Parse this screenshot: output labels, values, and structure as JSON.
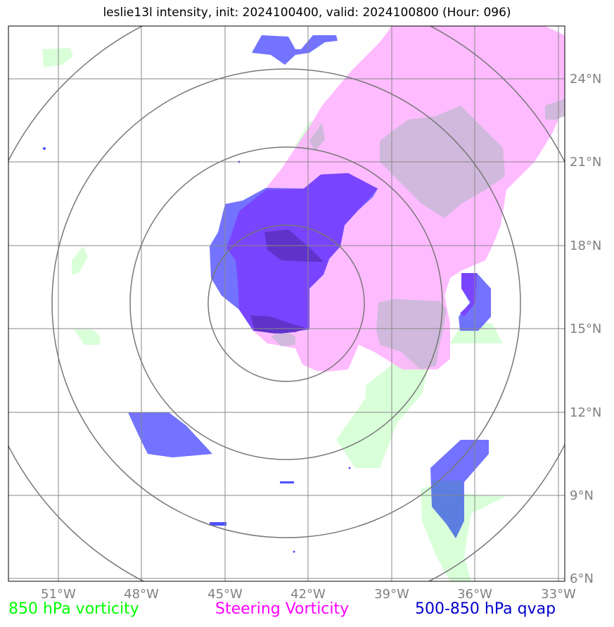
{
  "title": "leslie13l intensity, init: 2024100400, valid: 2024100800 (Hour: 096)",
  "map": {
    "lon_ticks": [
      "51°W",
      "48°W",
      "45°W",
      "42°W",
      "39°W",
      "36°W",
      "33°W"
    ],
    "lat_ticks": [
      "24°N",
      "21°N",
      "18°N",
      "15°N",
      "12°N",
      "9°N",
      "6°N"
    ],
    "colors": {
      "vorticity_850": "#ccffcc",
      "steering_vorticity": "#ffaaff",
      "qvap": "#5050ff",
      "grid": "#888888",
      "range_rings": "#777777"
    }
  },
  "legend": {
    "green_label": "850 hPa vorticity",
    "magenta_label": "Steering Vorticity",
    "blue_label": "500-850 hPa qvap"
  }
}
